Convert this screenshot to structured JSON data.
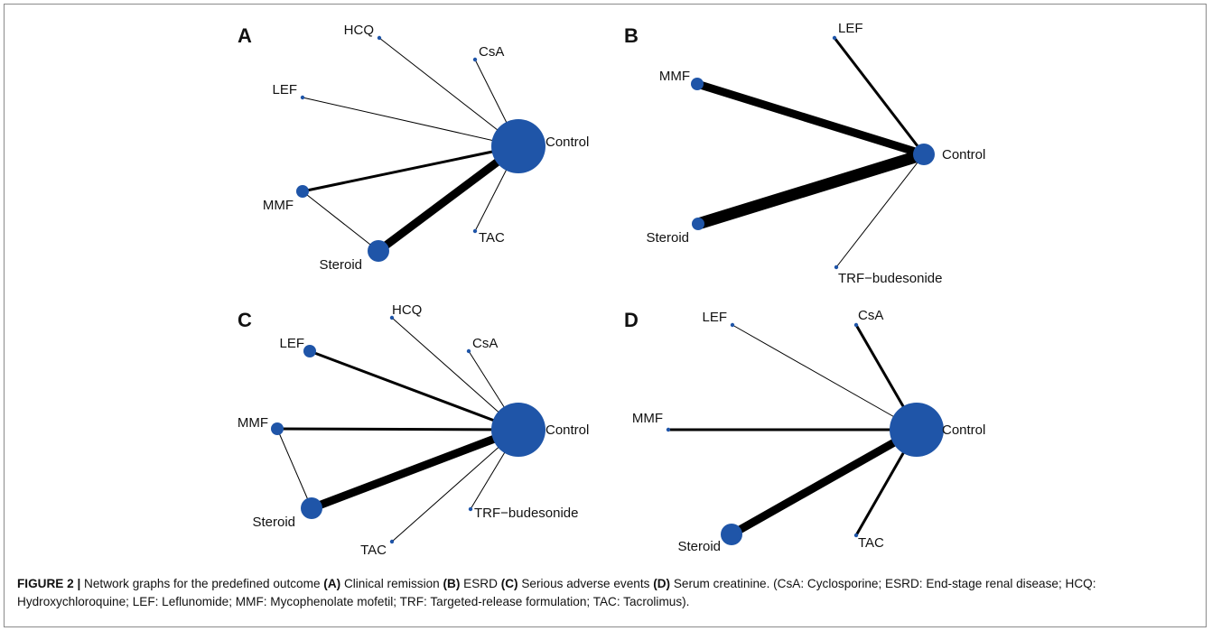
{
  "node_color": "#1f55a8",
  "edge_color": "#000000",
  "panels": [
    {
      "letter": "A",
      "nodes": {
        "HCQ": {
          "label": "HCQ",
          "size": "tiny"
        },
        "CsA": {
          "label": "CsA",
          "size": "tiny"
        },
        "LEF": {
          "label": "LEF",
          "size": "tiny"
        },
        "Control": {
          "label": "Control",
          "size": "large"
        },
        "MMF": {
          "label": "MMF",
          "size": "small"
        },
        "TAC": {
          "label": "TAC",
          "size": "tiny"
        },
        "Steroid": {
          "label": "Steroid",
          "size": "medium"
        }
      },
      "edges": [
        {
          "from": "HCQ",
          "to": "Control",
          "weight": "thin"
        },
        {
          "from": "CsA",
          "to": "Control",
          "weight": "thin"
        },
        {
          "from": "LEF",
          "to": "Control",
          "weight": "thin"
        },
        {
          "from": "MMF",
          "to": "Control",
          "weight": "medium"
        },
        {
          "from": "TAC",
          "to": "Control",
          "weight": "thin"
        },
        {
          "from": "Steroid",
          "to": "Control",
          "weight": "heavy"
        },
        {
          "from": "MMF",
          "to": "Steroid",
          "weight": "thin"
        }
      ]
    },
    {
      "letter": "B",
      "nodes": {
        "LEF": {
          "label": "LEF",
          "size": "tiny"
        },
        "MMF": {
          "label": "MMF",
          "size": "small"
        },
        "Control": {
          "label": "Control",
          "size": "medium"
        },
        "Steroid": {
          "label": "Steroid",
          "size": "small"
        },
        "TRF": {
          "label": "TRF−budesonide",
          "size": "tiny"
        }
      },
      "edges": [
        {
          "from": "LEF",
          "to": "Control",
          "weight": "medium"
        },
        {
          "from": "MMF",
          "to": "Control",
          "weight": "heavy"
        },
        {
          "from": "Steroid",
          "to": "Control",
          "weight": "very-heavy"
        },
        {
          "from": "TRF",
          "to": "Control",
          "weight": "thin"
        }
      ]
    },
    {
      "letter": "C",
      "nodes": {
        "HCQ": {
          "label": "HCQ",
          "size": "tiny"
        },
        "LEF": {
          "label": "LEF",
          "size": "small"
        },
        "CsA": {
          "label": "CsA",
          "size": "tiny"
        },
        "MMF": {
          "label": "MMF",
          "size": "small"
        },
        "Control": {
          "label": "Control",
          "size": "large"
        },
        "Steroid": {
          "label": "Steroid",
          "size": "medium"
        },
        "TRF": {
          "label": "TRF−budesonide",
          "size": "tiny"
        },
        "TAC": {
          "label": "TAC",
          "size": "tiny"
        }
      },
      "edges": [
        {
          "from": "HCQ",
          "to": "Control",
          "weight": "thin"
        },
        {
          "from": "LEF",
          "to": "Control",
          "weight": "medium"
        },
        {
          "from": "CsA",
          "to": "Control",
          "weight": "thin"
        },
        {
          "from": "MMF",
          "to": "Control",
          "weight": "medium"
        },
        {
          "from": "Steroid",
          "to": "Control",
          "weight": "heavy"
        },
        {
          "from": "TRF",
          "to": "Control",
          "weight": "thin"
        },
        {
          "from": "TAC",
          "to": "Control",
          "weight": "thin"
        },
        {
          "from": "MMF",
          "to": "Steroid",
          "weight": "thin"
        }
      ]
    },
    {
      "letter": "D",
      "nodes": {
        "LEF": {
          "label": "LEF",
          "size": "tiny"
        },
        "CsA": {
          "label": "CsA",
          "size": "tiny"
        },
        "MMF": {
          "label": "MMF",
          "size": "tiny"
        },
        "Control": {
          "label": "Control",
          "size": "large"
        },
        "Steroid": {
          "label": "Steroid",
          "size": "medium"
        },
        "TAC": {
          "label": "TAC",
          "size": "tiny"
        }
      },
      "edges": [
        {
          "from": "LEF",
          "to": "Control",
          "weight": "thin"
        },
        {
          "from": "CsA",
          "to": "Control",
          "weight": "medium"
        },
        {
          "from": "MMF",
          "to": "Control",
          "weight": "medium"
        },
        {
          "from": "Steroid",
          "to": "Control",
          "weight": "heavy"
        },
        {
          "from": "TAC",
          "to": "Control",
          "weight": "medium"
        }
      ]
    }
  ],
  "caption": {
    "fig_label": "FIGURE 2 |",
    "t1": " Network graphs for the predefined outcome ",
    "a": "(A)",
    "t2": " Clinical remission ",
    "b": "(B)",
    "t3": " ESRD ",
    "c": "(C)",
    "t4": " Serious adverse events ",
    "d": "(D)",
    "t5": " Serum creatinine. (CsA: Cyclosporine; ESRD: End-stage renal disease; HCQ: Hydroxychloroquine; LEF: Leflunomide; MMF: Mycophenolate mofetil; TRF: Targeted-release formulation; TAC: Tacrolimus)."
  }
}
